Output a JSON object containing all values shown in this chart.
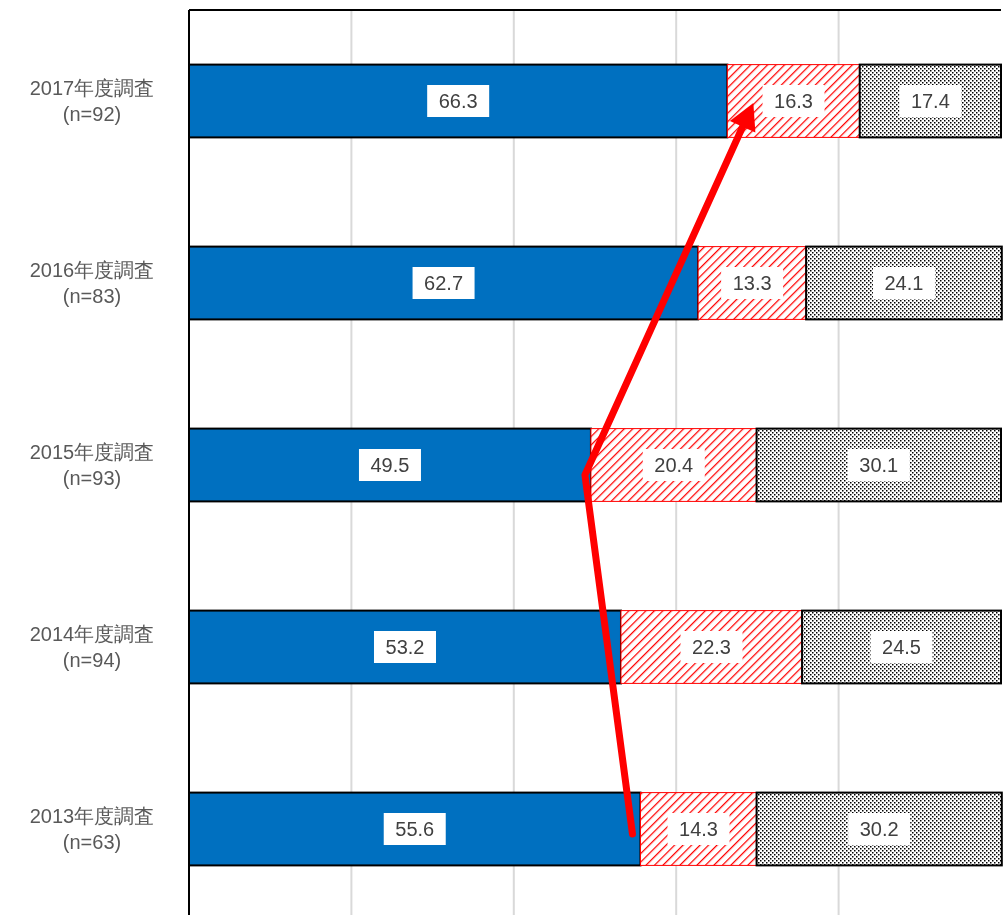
{
  "chart_data": {
    "type": "bar",
    "orientation": "horizontal",
    "stacked": true,
    "categories": [
      "2017年度調査\n(n=92)",
      "2016年度調査\n(n=83)",
      "2015年度調査\n(n=93)",
      "2014年度調査\n(n=94)",
      "2013年度調査\n(n=63)"
    ],
    "series": [
      {
        "color": "#0070c0",
        "values": [
          66.3,
          62.7,
          49.5,
          53.2,
          55.6
        ]
      },
      {
        "color": "#ff0000",
        "values": [
          16.3,
          13.3,
          20.4,
          22.3,
          14.3
        ]
      },
      {
        "color": "#000000",
        "values": [
          17.4,
          24.1,
          30.1,
          24.5,
          30.2
        ]
      }
    ],
    "xlim": [
      0,
      100
    ],
    "xticks": [
      {
        "value": 0,
        "label": null
      },
      {
        "value": 20,
        "label": null
      },
      {
        "value": 40,
        "label": null
      },
      {
        "value": 60,
        "label": null
      },
      {
        "value": 80,
        "label": null
      }
    ],
    "grid": "x",
    "tick_labels": "y",
    "data_labels": true,
    "legend": false
  }
}
